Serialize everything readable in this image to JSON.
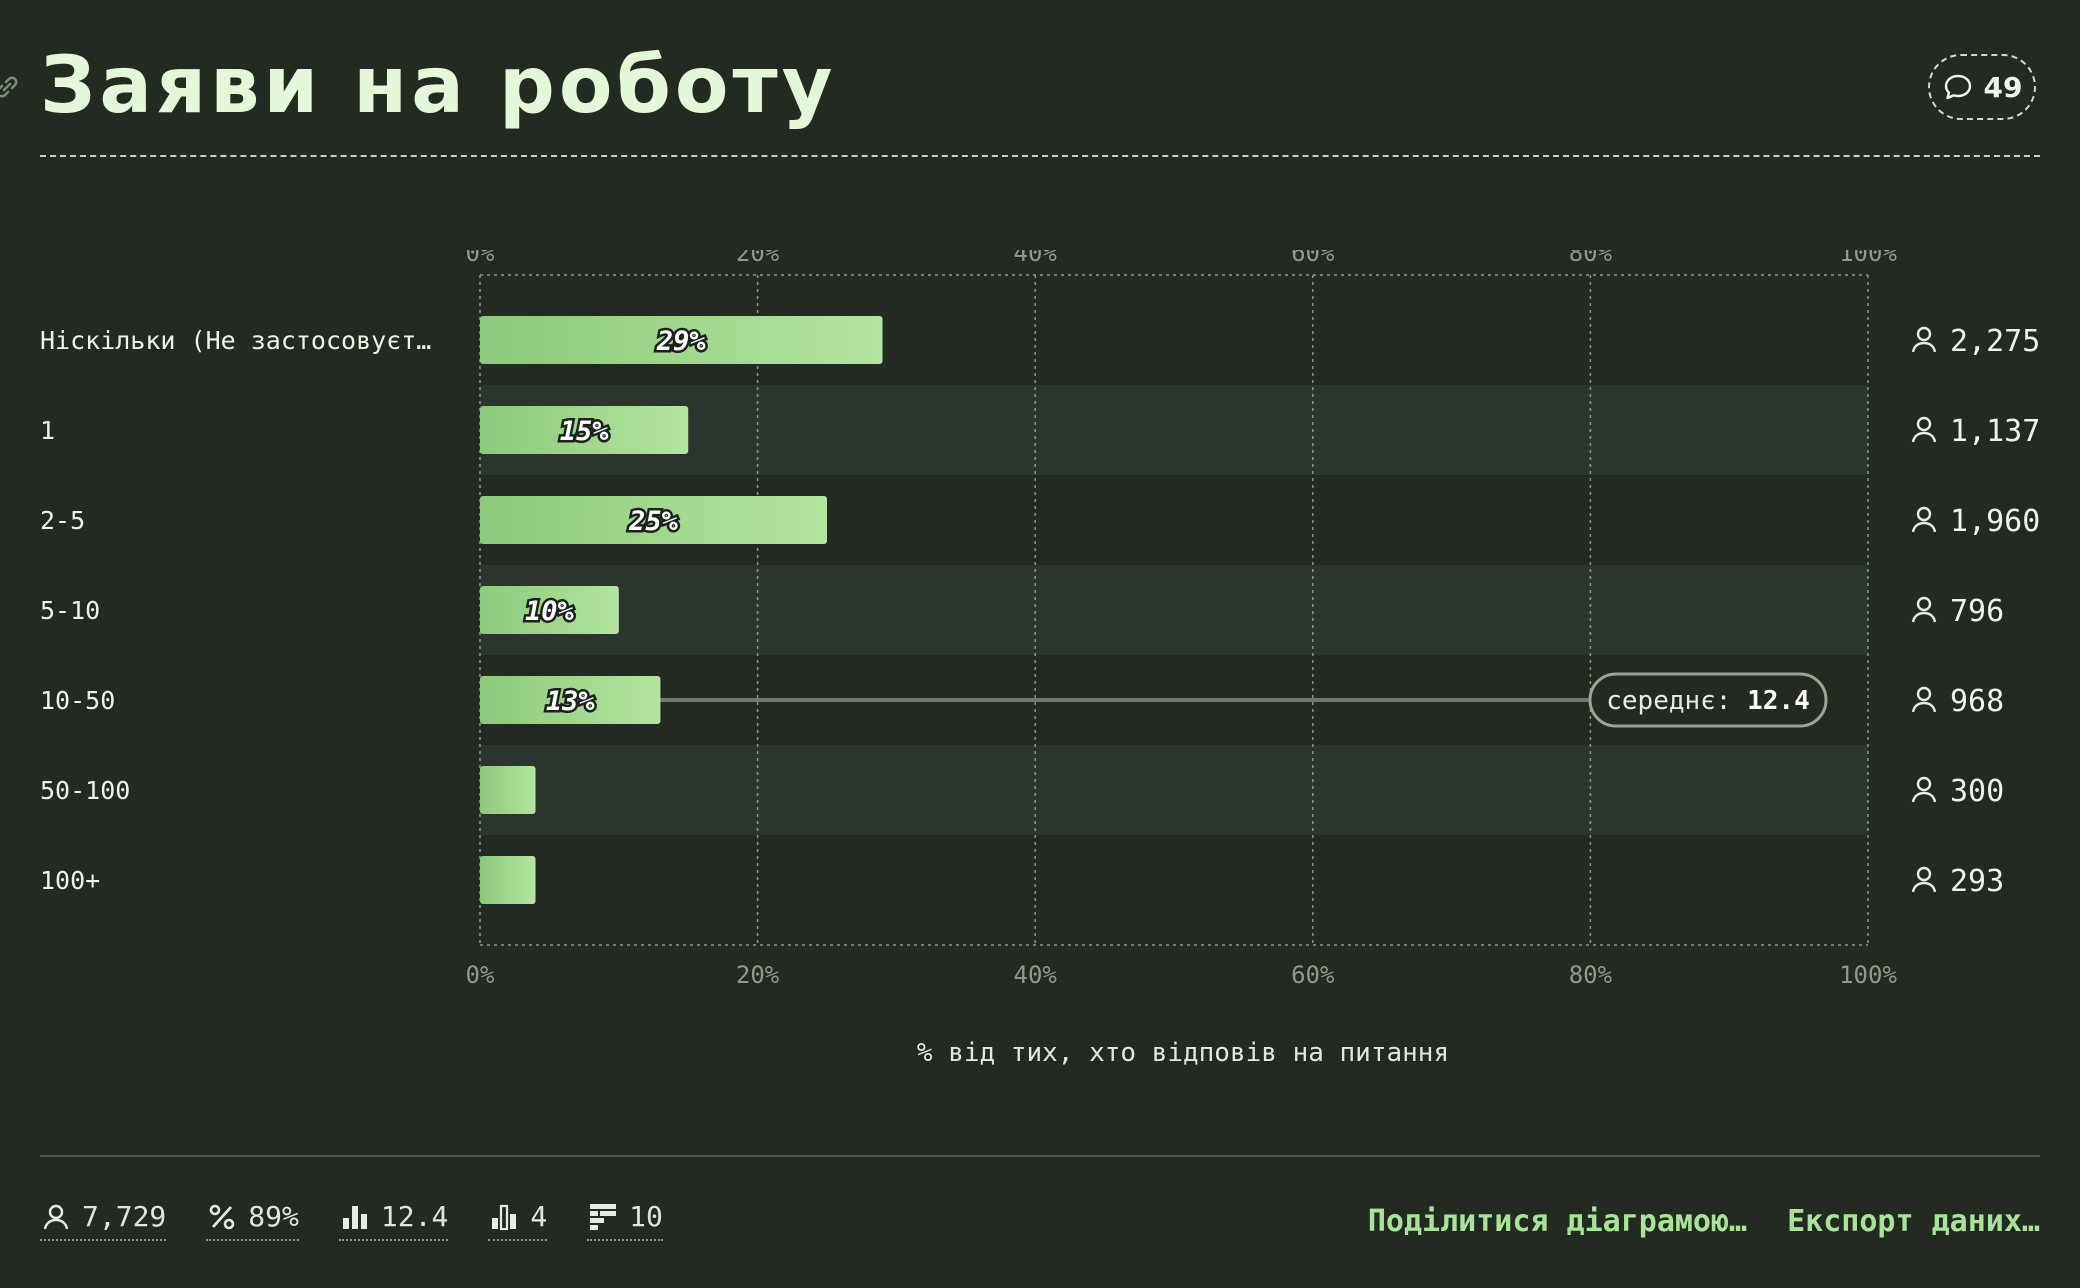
{
  "header": {
    "title": "Заяви на роботу",
    "comment_count": "49"
  },
  "chart_data": {
    "type": "bar",
    "orientation": "horizontal",
    "title": "Заяви на роботу",
    "xlabel": "% від тих, хто відповів на питання",
    "xlim": [
      0,
      100
    ],
    "ticks": [
      "0%",
      "20%",
      "40%",
      "60%",
      "80%",
      "100%"
    ],
    "categories": [
      "Ніскільки (Не застосовуєт…",
      "1",
      "2-5",
      "5-10",
      "10-50",
      "50-100",
      "100+"
    ],
    "values": [
      29,
      15,
      25,
      10,
      13,
      4,
      4
    ],
    "labels": [
      "29%",
      "15%",
      "25%",
      "10%",
      "13%",
      "",
      ""
    ],
    "counts": [
      "2,275",
      "1,137",
      "1,960",
      "796",
      "968",
      "300",
      "293"
    ],
    "mean": {
      "label": "середнє:",
      "value": "12.4",
      "category_index": 4
    },
    "grid": true,
    "colors": {
      "bar_start": "#8cc979",
      "bar_end": "#b3e59f",
      "grid": "#8a9487",
      "band": "#2b352d"
    }
  },
  "stats": {
    "respondents": "7,729",
    "percent": "89%",
    "mean": "12.4",
    "median": "4",
    "options": "10"
  },
  "actions": {
    "share": "Поділитися діаграмою…",
    "export": "Експорт даних…"
  }
}
